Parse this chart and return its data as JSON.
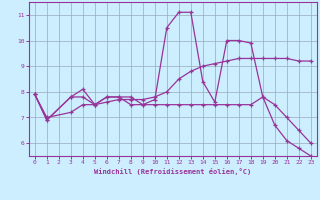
{
  "xlabel": "Windchill (Refroidissement éolien,°C)",
  "xlim": [
    -0.5,
    23.5
  ],
  "ylim": [
    5.5,
    11.5
  ],
  "yticks": [
    6,
    7,
    8,
    9,
    10,
    11
  ],
  "xticks": [
    0,
    1,
    2,
    3,
    4,
    5,
    6,
    7,
    8,
    9,
    10,
    11,
    12,
    13,
    14,
    15,
    16,
    17,
    18,
    19,
    20,
    21,
    22,
    23
  ],
  "bg_color": "#cceeff",
  "line_color": "#993399",
  "grid_color": "#99aabb",
  "series1_x": [
    0,
    1,
    3,
    4,
    5,
    6,
    7,
    8,
    9,
    10,
    11,
    12,
    13,
    14,
    15,
    16,
    17,
    18,
    19,
    20,
    21,
    22,
    23
  ],
  "series1_y": [
    7.9,
    6.9,
    7.8,
    8.1,
    7.5,
    7.8,
    7.8,
    7.8,
    7.5,
    7.7,
    10.5,
    11.1,
    11.1,
    8.4,
    7.6,
    10.0,
    10.0,
    9.9,
    7.8,
    6.7,
    6.1,
    5.8,
    5.5
  ],
  "series2_x": [
    0,
    1,
    3,
    4,
    5,
    6,
    7,
    8,
    9,
    10,
    11,
    12,
    13,
    14,
    15,
    16,
    17,
    18,
    19,
    20,
    21,
    22,
    23
  ],
  "series2_y": [
    7.9,
    7.0,
    7.2,
    7.5,
    7.5,
    7.6,
    7.7,
    7.7,
    7.7,
    7.8,
    8.0,
    8.5,
    8.8,
    9.0,
    9.1,
    9.2,
    9.3,
    9.3,
    9.3,
    9.3,
    9.3,
    9.2,
    9.2
  ],
  "series3_x": [
    0,
    1,
    3,
    4,
    5,
    6,
    7,
    8,
    9,
    10,
    11,
    12,
    13,
    14,
    15,
    16,
    17,
    18,
    19,
    20,
    21,
    22,
    23
  ],
  "series3_y": [
    7.9,
    6.9,
    7.8,
    7.8,
    7.5,
    7.8,
    7.8,
    7.5,
    7.5,
    7.5,
    7.5,
    7.5,
    7.5,
    7.5,
    7.5,
    7.5,
    7.5,
    7.5,
    7.8,
    7.5,
    7.0,
    6.5,
    6.0
  ]
}
